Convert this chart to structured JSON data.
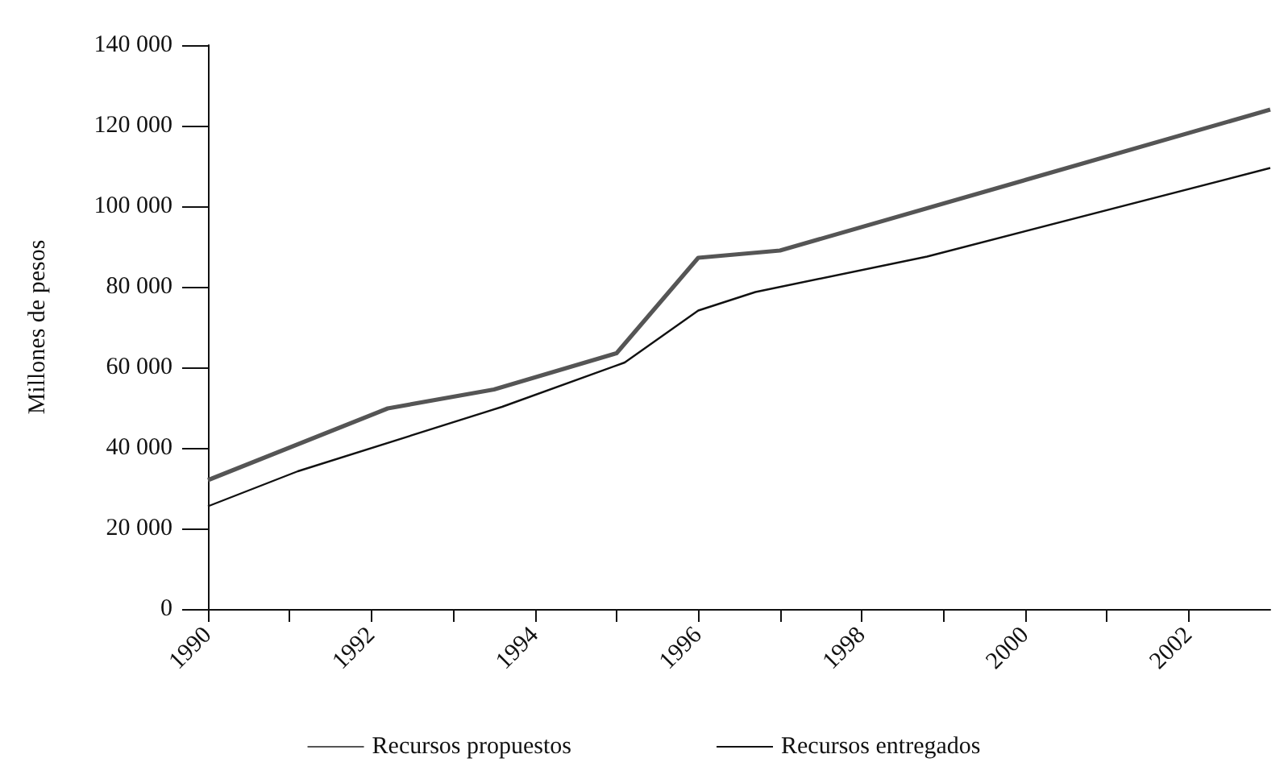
{
  "chart_data": {
    "type": "line",
    "ylabel": "Millones de pesos",
    "xlim": [
      1990,
      2003
    ],
    "xticks": [
      1990,
      {
        "value": 1991,
        "label": null
      },
      1992,
      {
        "value": 1993,
        "label": null
      },
      1994,
      {
        "value": 1995,
        "label": null
      },
      1996,
      {
        "value": 1997,
        "label": null
      },
      1998,
      {
        "value": 1999,
        "label": null
      },
      2000,
      {
        "value": 2001,
        "label": null
      },
      2002
    ],
    "ylim": [
      0,
      140000
    ],
    "yticks": [
      {
        "value": 0,
        "label": "0"
      },
      {
        "value": 20000,
        "label": "20 000"
      },
      {
        "value": 40000,
        "label": "40 000"
      },
      {
        "value": 60000,
        "label": "60 000"
      },
      {
        "value": 80000,
        "label": "80 000"
      },
      {
        "value": 100000,
        "label": "100 000"
      },
      {
        "value": 120000,
        "label": "120 000"
      },
      {
        "value": 140000,
        "label": "140 000"
      }
    ],
    "series": [
      {
        "name": "Recursos propuestos",
        "color": "#555555",
        "x": [
          1990,
          1992.2,
          1993.5,
          1995,
          1996,
          1997,
          2003
        ],
        "values": [
          32000,
          49800,
          54500,
          63500,
          87200,
          89000,
          124000
        ]
      },
      {
        "name": "Recursos entregados",
        "color": "#111111",
        "x": [
          1990,
          1991.1,
          1993.6,
          1995.1,
          1996,
          1996.7,
          1998.8,
          2003
        ],
        "values": [
          25500,
          34200,
          50200,
          61200,
          74100,
          78700,
          87500,
          109500
        ]
      }
    ],
    "grid": false,
    "legend": "bottom",
    "marker": "none",
    "line_style": "solid"
  }
}
